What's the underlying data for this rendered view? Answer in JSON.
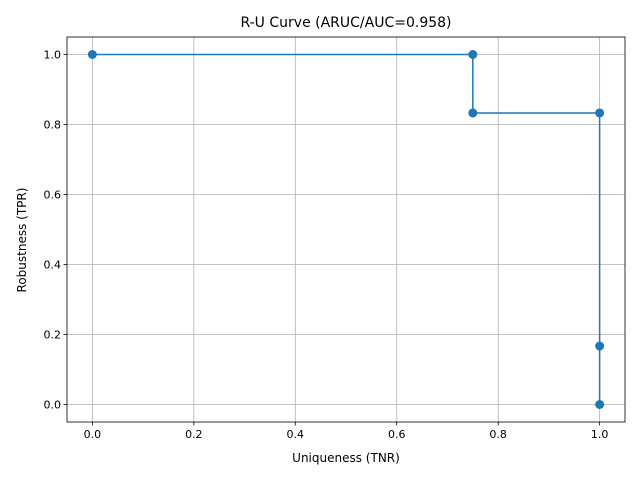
{
  "chart_data": {
    "type": "line",
    "title": "R-U Curve (ARUC/AUC=0.958)",
    "xlabel": "Uniqueness (TNR)",
    "ylabel": "Robustness (TPR)",
    "xlim": [
      -0.05,
      1.05
    ],
    "ylim": [
      -0.05,
      1.05
    ],
    "xticks": [
      0.0,
      0.2,
      0.4,
      0.6,
      0.8,
      1.0
    ],
    "yticks": [
      0.0,
      0.2,
      0.4,
      0.6,
      0.8,
      1.0
    ],
    "xtick_labels": [
      "0.0",
      "0.2",
      "0.4",
      "0.6",
      "0.8",
      "1.0"
    ],
    "ytick_labels": [
      "0.0",
      "0.2",
      "0.4",
      "0.6",
      "0.8",
      "1.0"
    ],
    "grid": true,
    "series": [
      {
        "color": "#1f77b4",
        "marker": "circle",
        "x": [
          0.0,
          0.75,
          0.75,
          1.0,
          1.0,
          1.0
        ],
        "y": [
          1.0,
          1.0,
          0.833,
          0.833,
          0.167,
          0.0
        ]
      }
    ]
  }
}
